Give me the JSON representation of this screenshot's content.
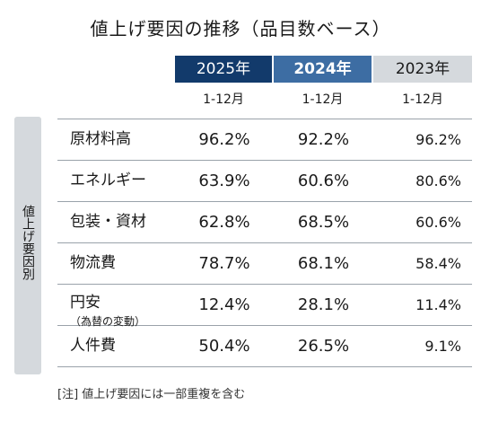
{
  "chart_data": {
    "type": "table",
    "title": "値上げ要因の推移（品目数ベース）",
    "side_label": "値上げ要因別",
    "columns": [
      {
        "year": "2025年",
        "period": "1-12月",
        "color": "#123a6b"
      },
      {
        "year": "2024年",
        "period": "1-12月",
        "color": "#3d6da3"
      },
      {
        "year": "2023年",
        "period": "1-12月",
        "color": "#d5d9dd"
      }
    ],
    "rows": [
      {
        "label": "原材料高",
        "sublabel": "",
        "values": [
          "96.2%",
          "92.2%",
          "96.2%"
        ]
      },
      {
        "label": "エネルギー",
        "sublabel": "",
        "values": [
          "63.9%",
          "60.6%",
          "80.6%"
        ]
      },
      {
        "label": "包装・資材",
        "sublabel": "",
        "values": [
          "62.8%",
          "68.5%",
          "60.6%"
        ]
      },
      {
        "label": "物流費",
        "sublabel": "",
        "values": [
          "78.7%",
          "68.1%",
          "58.4%"
        ]
      },
      {
        "label": "円安",
        "sublabel": "（為替の変動）",
        "values": [
          "12.4%",
          "28.1%",
          "11.4%"
        ]
      },
      {
        "label": "人件費",
        "sublabel": "",
        "values": [
          "50.4%",
          "26.5%",
          "9.1%"
        ]
      }
    ],
    "note": "[注]  値上げ要因には一部重複を含む"
  }
}
